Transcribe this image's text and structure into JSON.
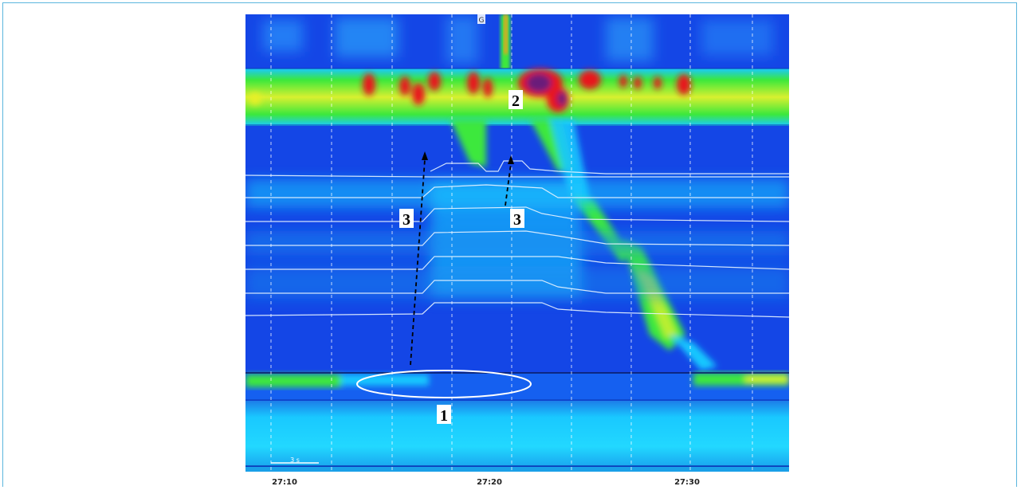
{
  "chart_data": {
    "type": "heatmap",
    "title": "",
    "xlabel": "",
    "ylabel": "",
    "x_ticks": [
      "27:10",
      "27:20",
      "27:30"
    ],
    "x_range": [
      "27:09",
      "27:35"
    ],
    "scale_bar_label": "3 s",
    "top_marker": "G",
    "colors": {
      "background": "#1446e6",
      "band_cyan": "#19c8ff",
      "band_green": "#3ce83c",
      "band_yellow": "#e6f028",
      "hot_red": "#e8191e",
      "hot_core": "#6a1a7a",
      "overlay_line": "#e8f4ff"
    },
    "annotations": [
      {
        "label": "1",
        "kind": "ellipse",
        "target": "low band gap near 27:15-27:21"
      },
      {
        "label": "2",
        "kind": "label",
        "target": "upper band near 27:20"
      },
      {
        "label": "3",
        "kind": "arrow",
        "target": "rising line at 27:16"
      },
      {
        "label": "3",
        "kind": "arrow",
        "target": "rising line at 27:21"
      }
    ]
  }
}
